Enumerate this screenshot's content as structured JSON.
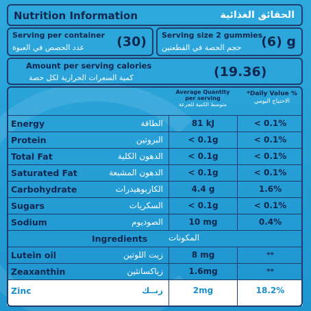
{
  "title": {
    "en": "Nutrition Information",
    "ar": "الحقائق الغذائية"
  },
  "serving_container": {
    "label_en": "Serving per container",
    "label_ar": "عدد الحصص في العبوة",
    "value": "(30)"
  },
  "serving_size": {
    "label_en": "Serving size 2 gummies",
    "label_ar": "حجم الحصة في القطعتين",
    "value": "(6) g"
  },
  "calories": {
    "label_en": "Amount per serving calories",
    "label_ar": "كمية السعرات الحرارية لكل حصة",
    "value": "(19.36)"
  },
  "header": {
    "amount_en_1": "Average Quantity",
    "amount_en_2": "per serving",
    "amount_ar": "متوسط الكمية للجرعة",
    "dv_en": "*Daily Value %",
    "dv_ar": "الاحتياج اليومي"
  },
  "nutrients": [
    {
      "en": "Energy",
      "ar": "الطاقة",
      "amount": "81 kJ",
      "dv": "< 0.1%"
    },
    {
      "en": "Protein",
      "ar": "البروتين",
      "amount": "< 0.1g",
      "dv": "< 0.1%"
    },
    {
      "en": "Total Fat",
      "ar": "الدهون الكلية",
      "amount": "< 0.1g",
      "dv": "< 0.1%"
    },
    {
      "en": "Saturated Fat",
      "ar": "الدهون المشبعة",
      "amount": "< 0.1g",
      "dv": "< 0.1%"
    },
    {
      "en": "Carbohydrate",
      "ar": "الكاربوهيدرات",
      "amount": "4.4 g",
      "dv": "1.6%"
    },
    {
      "en": "Sugars",
      "ar": "السكريات",
      "amount": "< 0.1g",
      "dv": "< 0.1%"
    },
    {
      "en": "Sodium",
      "ar": "الصوديوم",
      "amount": "10 mg",
      "dv": "0.4%"
    }
  ],
  "ingredients_header": {
    "en": "Ingredients",
    "ar": "المكونات"
  },
  "ingredients": [
    {
      "en": "Lutein oil",
      "ar": "زيت اللوتين",
      "amount": "8 mg",
      "dv": "**"
    },
    {
      "en": "Zeaxanthin",
      "ar": "زياكسانثين",
      "amount": "1.6mg",
      "dv": "**"
    },
    {
      "en": "Zinc",
      "ar": "زنــك",
      "amount": "2mg",
      "dv": "18.2%"
    }
  ],
  "colors": {
    "background": "#2ea9dd",
    "border": "#1c3d6e",
    "dark_text": "#10284f",
    "zinc_highlight": "#1a8fd0"
  }
}
